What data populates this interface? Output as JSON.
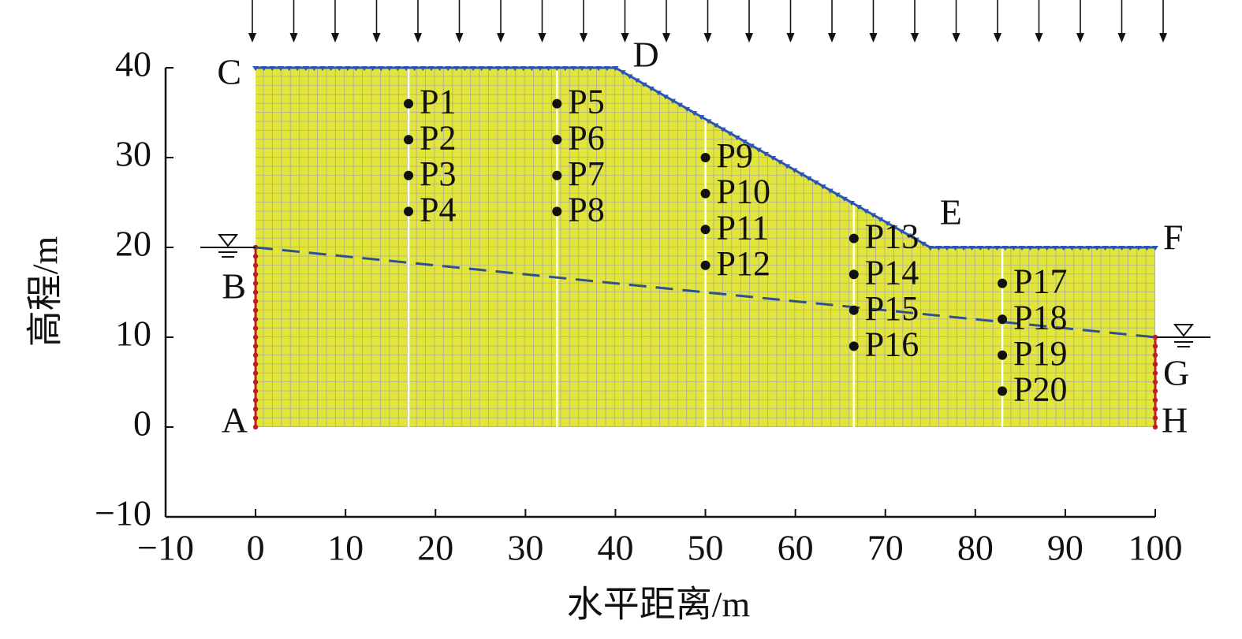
{
  "chart_data": {
    "type": "slope-model",
    "xlabel": "水平距离/m",
    "ylabel": "高程/m",
    "xlim": [
      -10,
      100
    ],
    "ylim": [
      -10,
      40
    ],
    "xticks": [
      {
        "value": -10,
        "label": "−10"
      },
      0,
      10,
      20,
      30,
      40,
      50,
      60,
      70,
      80,
      90,
      100
    ],
    "yticks": [
      {
        "value": -10,
        "label": "−10"
      },
      0,
      10,
      20,
      30,
      40
    ],
    "profile": {
      "x": [
        0,
        0,
        40,
        75,
        100,
        100
      ],
      "y": [
        0,
        40,
        40,
        20,
        20,
        0
      ],
      "color": "#e3e63a"
    },
    "water_table": {
      "x": [
        0,
        100
      ],
      "y": [
        20,
        10
      ],
      "color": "#2f4f8f"
    },
    "corner_labels": [
      {
        "label": "A",
        "x": 0,
        "y": 0
      },
      {
        "label": "B",
        "x": 0,
        "y": 20
      },
      {
        "label": "C",
        "x": 0,
        "y": 40
      },
      {
        "label": "D",
        "x": 40,
        "y": 40
      },
      {
        "label": "E",
        "x": 75,
        "y": 20
      },
      {
        "label": "F",
        "x": 100,
        "y": 20
      },
      {
        "label": "G",
        "x": 100,
        "y": 10
      },
      {
        "label": "H",
        "x": 100,
        "y": 0
      }
    ],
    "points": [
      {
        "label": "P1",
        "x": 17,
        "y": 36
      },
      {
        "label": "P2",
        "x": 17,
        "y": 32
      },
      {
        "label": "P3",
        "x": 17,
        "y": 28
      },
      {
        "label": "P4",
        "x": 17,
        "y": 24
      },
      {
        "label": "P5",
        "x": 33.5,
        "y": 36
      },
      {
        "label": "P6",
        "x": 33.5,
        "y": 32
      },
      {
        "label": "P7",
        "x": 33.5,
        "y": 28
      },
      {
        "label": "P8",
        "x": 33.5,
        "y": 24
      },
      {
        "label": "P9",
        "x": 50,
        "y": 30
      },
      {
        "label": "P10",
        "x": 50,
        "y": 26
      },
      {
        "label": "P11",
        "x": 50,
        "y": 22
      },
      {
        "label": "P12",
        "x": 50,
        "y": 18
      },
      {
        "label": "P13",
        "x": 66.5,
        "y": 21
      },
      {
        "label": "P14",
        "x": 66.5,
        "y": 17
      },
      {
        "label": "P15",
        "x": 66.5,
        "y": 13
      },
      {
        "label": "P16",
        "x": 66.5,
        "y": 9
      },
      {
        "label": "P17",
        "x": 83,
        "y": 16
      },
      {
        "label": "P18",
        "x": 83,
        "y": 12
      },
      {
        "label": "P19",
        "x": 83,
        "y": 8
      },
      {
        "label": "P20",
        "x": 83,
        "y": 4
      }
    ]
  }
}
